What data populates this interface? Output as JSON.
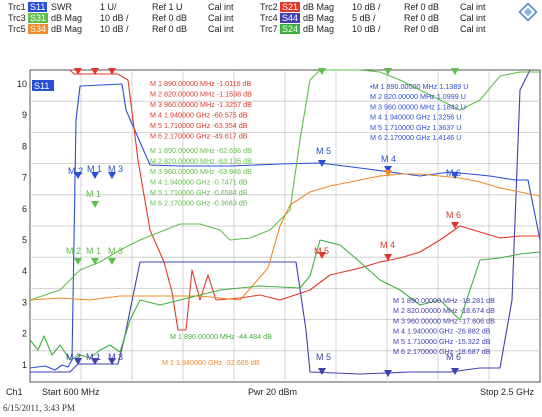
{
  "colors": {
    "trc1": "#2a4fd6",
    "trc2": "#e0392b",
    "trc3": "#5fbf4a",
    "trc4": "#4040b0",
    "trc5": "#f08a2a",
    "trc6": "#bbbbbb",
    "trc7": "#3fb03f",
    "grid": "#c8c8c8",
    "frame": "#555555",
    "text": "#222222"
  },
  "header": {
    "rows": [
      [
        {
          "trace": "Trc1",
          "id": "S11",
          "color_key": "trc1",
          "format": "SWR",
          "scale": "1 U/",
          "ref": "Ref 1 U",
          "cal": "Cal int"
        },
        {
          "trace": "Trc2",
          "id": "S21",
          "color_key": "trc2",
          "format": "dB Mag",
          "scale": "10 dB /",
          "ref": "Ref 0 dB",
          "cal": "Cal int"
        }
      ],
      [
        {
          "trace": "Trc3",
          "id": "S31",
          "color_key": "trc3",
          "format": "dB Mag",
          "scale": "10 dB /",
          "ref": "Ref 0 dB",
          "cal": "Cal int"
        },
        {
          "trace": "Trc4",
          "id": "S44",
          "color_key": "trc4",
          "format": "dB Mag",
          "scale": "5 dB /",
          "ref": "Ref 0 dB",
          "cal": "Cal int"
        }
      ],
      [
        {
          "trace": "Trc5",
          "id": "S34",
          "color_key": "trc5",
          "format": "dB Mag",
          "scale": "10 dB /",
          "ref": "Ref 0 dB",
          "cal": "Cal int"
        },
        {
          "trace": "Trc7",
          "id": "S24",
          "color_key": "trc7",
          "format": "dB Mag",
          "scale": "10 dB /",
          "ref": "Ref 0 dB",
          "cal": "Cal int"
        }
      ]
    ]
  },
  "active_trace": "S11",
  "y_ticks": [
    "10",
    "9",
    "8",
    "7",
    "6",
    "5",
    "4",
    "3",
    "2",
    "1"
  ],
  "marker_tables": {
    "trc2": {
      "color_key": "trc2",
      "rows": [
        "M 1  890.00000 MHz  -1.0116 dB",
        "M 2  820.00000 MHz  -1.1598 dB",
        "M 3  960.00000 MHz  -1.3257 dB",
        "M 4   1.940000 GHz  -60.575 dB",
        "M 5   1.710000 GHz  -63.354 dB",
        "M 6   2.170000 GHz  -49.617 dB"
      ]
    },
    "trc3": {
      "color_key": "trc3",
      "rows": [
        "M 1  890.00000 MHz  -62.696 dB",
        "M 2  820.00000 MHz  -63.135 dB",
        "M 3  960.00000 MHz  -63.946 dB",
        "M 4   1.940000 GHz  -0.7471 dB",
        "M 5   1.710000 GHz  -0.6584 dB",
        "M 6   2.170000 GHz  -0.9683 dB"
      ]
    },
    "trc1": {
      "color_key": "trc1",
      "rows": [
        "•M 1  890.00000 MHz  1.1389 U",
        "M 2  820.00000 MHz  1.0999 U",
        "M 3  960.00000 MHz  1.1842 U",
        "M 4   1.940000 GHz  1.3256 U",
        "M 5   1.710000 GHz  1.3637 U",
        "M 6   2.170000 GHz  1.4146 U"
      ]
    },
    "trc4": {
      "color_key": "trc4",
      "rows": [
        "M 1  890.00000 MHz  -18.281 dB",
        "M 2  820.00000 MHz  -18.674 dB",
        "M 3  960.00000 MHz  -17.606 dB",
        "M 4   1.940000 GHz  -26.882 dB",
        "M 5   1.710000 GHz  -15.322 dB",
        "M 6   2.170000 GHz  -18.687 dB"
      ]
    },
    "trc7": {
      "color_key": "trc7",
      "rows": [
        "M 1  890.00000 MHz  -44.484 dB"
      ]
    },
    "trc5": {
      "color_key": "trc5",
      "rows": [
        "M 1  1.940000 GHz  -32.665 dB"
      ]
    }
  },
  "footer": {
    "channel": "Ch1",
    "start": "Start  600 MHz",
    "power": "Pwr  20 dBm",
    "stop": "Stop  2.5 GHz"
  },
  "timestamp": "6/15/2011, 3:43 PM"
}
